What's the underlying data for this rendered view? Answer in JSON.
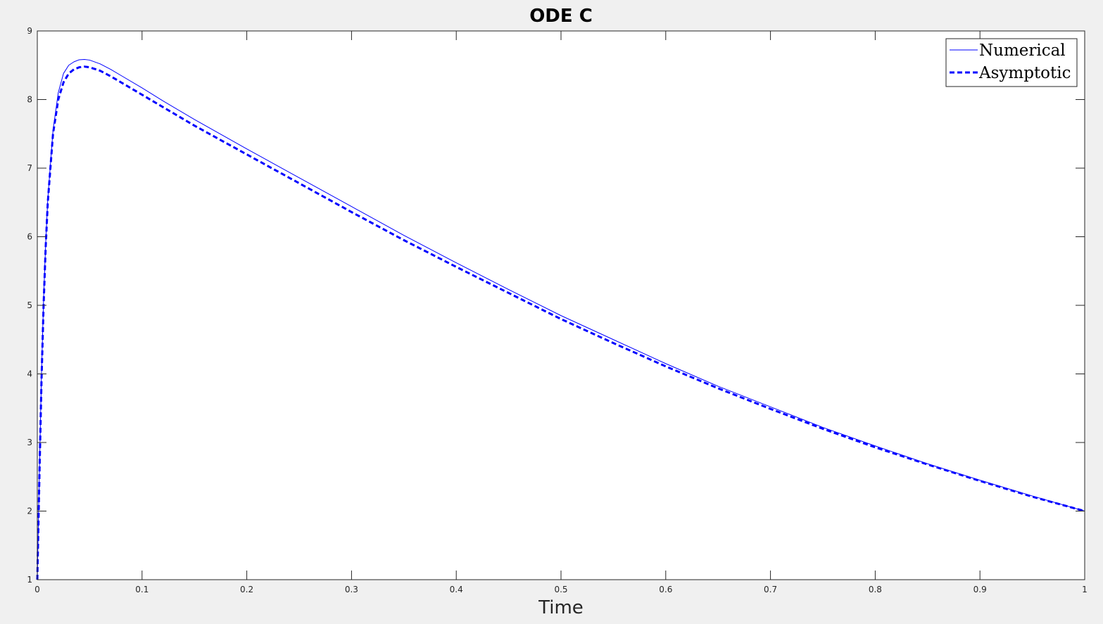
{
  "chart_data": {
    "type": "line",
    "title": "ODE C",
    "xlabel": "Time",
    "ylabel": "",
    "xlim": [
      0,
      1
    ],
    "ylim": [
      1,
      9
    ],
    "xticks": [
      "0",
      "0.1",
      "0.2",
      "0.3",
      "0.4",
      "0.5",
      "0.6",
      "0.7",
      "0.8",
      "0.9",
      "1"
    ],
    "yticks": [
      "1",
      "2",
      "3",
      "4",
      "5",
      "6",
      "7",
      "8",
      "9"
    ],
    "grid": false,
    "legend_position": "top-right",
    "series": [
      {
        "name": "Numerical",
        "color": "#0000ff",
        "style": "solid",
        "x": [
          0,
          0.002,
          0.004,
          0.006,
          0.008,
          0.01,
          0.015,
          0.02,
          0.025,
          0.03,
          0.035,
          0.04,
          0.045,
          0.05,
          0.06,
          0.07,
          0.08,
          0.1,
          0.12,
          0.15,
          0.2,
          0.25,
          0.3,
          0.35,
          0.4,
          0.45,
          0.5,
          0.55,
          0.6,
          0.65,
          0.7,
          0.75,
          0.8,
          0.85,
          0.9,
          0.95,
          1.0
        ],
        "y": [
          1.0,
          2.6,
          4.0,
          5.1,
          5.9,
          6.55,
          7.55,
          8.1,
          8.38,
          8.5,
          8.55,
          8.58,
          8.585,
          8.575,
          8.52,
          8.44,
          8.35,
          8.17,
          7.98,
          7.71,
          7.28,
          6.86,
          6.44,
          6.02,
          5.62,
          5.23,
          4.85,
          4.5,
          4.15,
          3.82,
          3.52,
          3.22,
          2.95,
          2.69,
          2.45,
          2.22,
          2.0
        ]
      },
      {
        "name": "Asymptotic",
        "color": "#0000ff",
        "style": "dashed",
        "x": [
          0,
          0.002,
          0.004,
          0.006,
          0.008,
          0.01,
          0.015,
          0.02,
          0.025,
          0.03,
          0.035,
          0.04,
          0.045,
          0.05,
          0.06,
          0.07,
          0.08,
          0.1,
          0.12,
          0.15,
          0.2,
          0.25,
          0.3,
          0.35,
          0.4,
          0.45,
          0.5,
          0.55,
          0.6,
          0.65,
          0.7,
          0.75,
          0.8,
          0.85,
          0.9,
          0.95,
          1.0
        ],
        "y": [
          1.0,
          2.5,
          3.9,
          5.0,
          5.85,
          6.5,
          7.5,
          8.0,
          8.25,
          8.38,
          8.44,
          8.47,
          8.48,
          8.47,
          8.42,
          8.34,
          8.25,
          8.07,
          7.89,
          7.62,
          7.2,
          6.78,
          6.36,
          5.95,
          5.56,
          5.18,
          4.8,
          4.45,
          4.11,
          3.79,
          3.49,
          3.2,
          2.93,
          2.68,
          2.44,
          2.21,
          2.0
        ]
      }
    ]
  }
}
